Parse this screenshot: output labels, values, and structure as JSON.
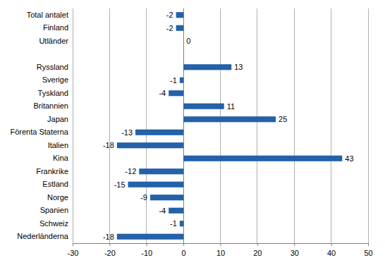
{
  "chart_data": {
    "type": "bar",
    "orientation": "horizontal",
    "categories": [
      "Total antalet",
      "Finland",
      "Utländer",
      null,
      "Ryssland",
      "Sverige",
      "Tyskland",
      "Britannien",
      "Japan",
      "Förenta Staterna",
      "Italien",
      "Kina",
      "Frankrike",
      "Estland",
      "Norge",
      "Spanien",
      "Schweiz",
      "Nederländerna"
    ],
    "values": [
      -2,
      -2,
      0,
      null,
      13,
      -1,
      -4,
      11,
      25,
      -13,
      -18,
      43,
      -12,
      -15,
      -9,
      -4,
      -1,
      -18
    ],
    "color": "#2461a8",
    "xlim": [
      -30,
      50
    ],
    "xticks": [
      -30,
      -20,
      -10,
      0,
      10,
      20,
      30,
      40,
      50
    ],
    "grid": true,
    "data_labels": true
  }
}
